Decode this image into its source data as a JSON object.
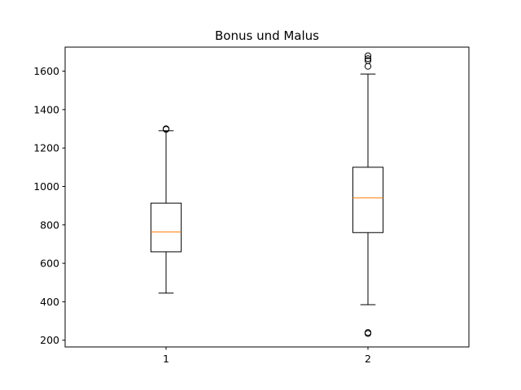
{
  "chart_data": {
    "type": "box",
    "title": "Bonus und Malus",
    "xlabel": "",
    "ylabel": "",
    "categories": [
      "1",
      "2"
    ],
    "ylim": [
      165,
      1725
    ],
    "yticks": [
      200,
      400,
      600,
      800,
      1000,
      1200,
      1400,
      1600
    ],
    "boxes": [
      {
        "category": "1",
        "whisker_low": 445,
        "q1": 660,
        "median": 763,
        "q3": 913,
        "whisker_high": 1290,
        "outliers": [
          1297,
          1300
        ]
      },
      {
        "category": "2",
        "whisker_low": 385,
        "q1": 760,
        "median": 940,
        "q3": 1100,
        "whisker_high": 1585,
        "outliers": [
          235,
          240,
          1625,
          1655,
          1665,
          1680
        ]
      }
    ],
    "grid": false,
    "colors": {
      "box": "#000000",
      "median": "#ff7f0e",
      "outlier": "#000000"
    }
  }
}
